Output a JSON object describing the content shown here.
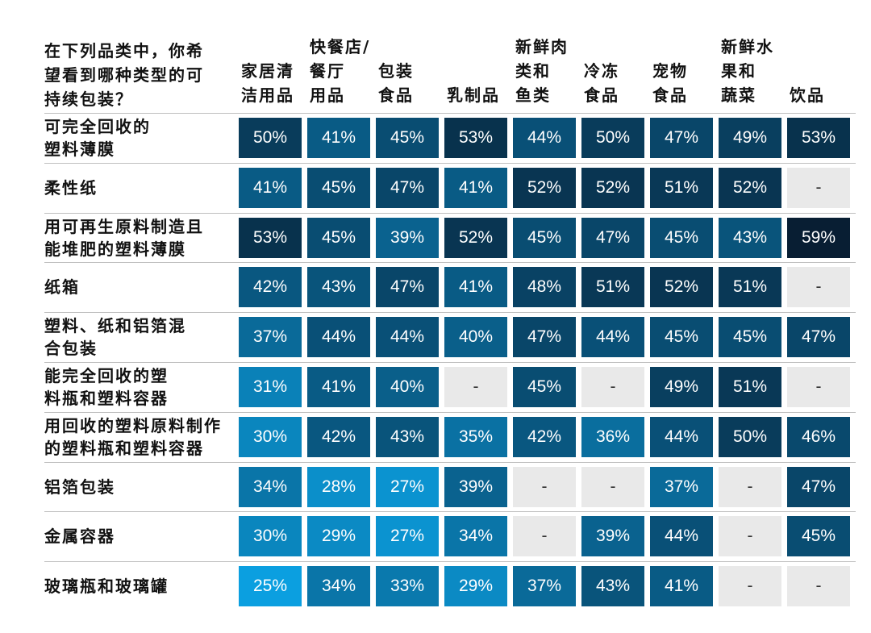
{
  "chart_data": {
    "type": "heatmap",
    "corner_label": "在下列品类中，你希\n望看到哪种类型的可\n持续包装？",
    "columns": [
      "家居清\n洁用品",
      "快餐店/\n餐厅\n用品",
      "包装\n食品",
      "乳制品",
      "新鲜肉\n类和\n鱼类",
      "冷冻\n食品",
      "宠物\n食品",
      "新鲜水\n果和\n蔬菜",
      "饮品"
    ],
    "rows": [
      "可完全回收的\n塑料薄膜",
      "柔性纸",
      "用可再生原料制造且\n能堆肥的塑料薄膜",
      "纸箱",
      "塑料、纸和铝箔混\n合包装",
      "能完全回收的塑\n料瓶和塑料容器",
      "用回收的塑料原料制作\n的塑料瓶和塑料容器",
      "铝箔包装",
      "金属容器",
      "玻璃瓶和玻璃罐"
    ],
    "values": [
      [
        50,
        41,
        45,
        53,
        44,
        50,
        47,
        49,
        53
      ],
      [
        41,
        45,
        47,
        41,
        52,
        52,
        51,
        52,
        null
      ],
      [
        53,
        45,
        39,
        52,
        45,
        47,
        45,
        43,
        59
      ],
      [
        42,
        43,
        47,
        41,
        48,
        51,
        52,
        51,
        null
      ],
      [
        37,
        44,
        44,
        40,
        47,
        44,
        45,
        45,
        47
      ],
      [
        31,
        41,
        40,
        null,
        45,
        null,
        49,
        51,
        null
      ],
      [
        30,
        42,
        43,
        35,
        42,
        36,
        44,
        50,
        46
      ],
      [
        34,
        28,
        27,
        39,
        null,
        null,
        37,
        null,
        47
      ],
      [
        30,
        29,
        27,
        34,
        null,
        39,
        44,
        null,
        45
      ],
      [
        25,
        34,
        33,
        29,
        37,
        43,
        41,
        null,
        null
      ]
    ],
    "value_suffix": "%",
    "missing_label": "-",
    "colors": {
      "lightest": "#0b9fe0",
      "darkest": "#081e33",
      "missing": "#e9e9e9",
      "text_light": "#ffffff",
      "text_missing": "#333333",
      "separator": "#bfbfbf"
    }
  }
}
